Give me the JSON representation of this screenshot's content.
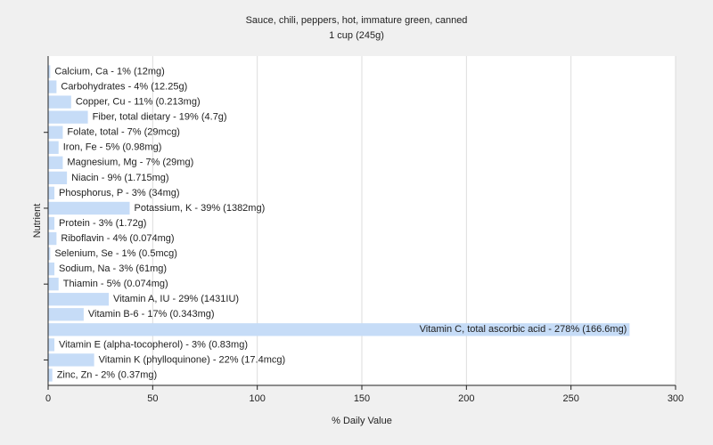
{
  "chart_data": {
    "type": "bar",
    "orientation": "horizontal",
    "title": "Sauce, chili, peppers, hot, immature green, canned",
    "subtitle": "1 cup (245g)",
    "x_label": "% Daily Value",
    "y_label": "Nutrient",
    "values": [
      1,
      4,
      11,
      19,
      7,
      5,
      7,
      9,
      3,
      39,
      3,
      4,
      1,
      3,
      5,
      29,
      17,
      278,
      3,
      22,
      2
    ],
    "value_labels": [
      "Calcium, Ca - 1% (12mg)",
      "Carbohydrates - 4% (12.25g)",
      "Copper, Cu - 11% (0.213mg)",
      "Fiber, total dietary - 19% (4.7g)",
      "Folate, total - 7% (29mcg)",
      "Iron, Fe - 5% (0.98mg)",
      "Magnesium, Mg - 7% (29mg)",
      "Niacin - 9% (1.715mg)",
      "Phosphorus, P - 3% (34mg)",
      "Potassium, K - 39% (1382mg)",
      "Protein - 3% (1.72g)",
      "Riboflavin - 4% (0.074mg)",
      "Selenium, Se - 1% (0.5mcg)",
      "Sodium, Na - 3% (61mg)",
      "Thiamin - 5% (0.074mg)",
      "Vitamin A, IU - 29% (1431IU)",
      "Vitamin B-6 - 17% (0.343mg)",
      "Vitamin C, total ascorbic acid - 278% (166.6mg)",
      "Vitamin E (alpha-tocopherol) - 3% (0.83mg)",
      "Vitamin K (phylloquinone) - 22% (17.4mcg)",
      "Zinc, Zn - 2% (0.37mg)"
    ],
    "color": "#c6dcf7",
    "xlim": [
      0,
      300
    ],
    "xticks": [
      0,
      50,
      100,
      150,
      200,
      250,
      300
    ],
    "grid": true
  }
}
